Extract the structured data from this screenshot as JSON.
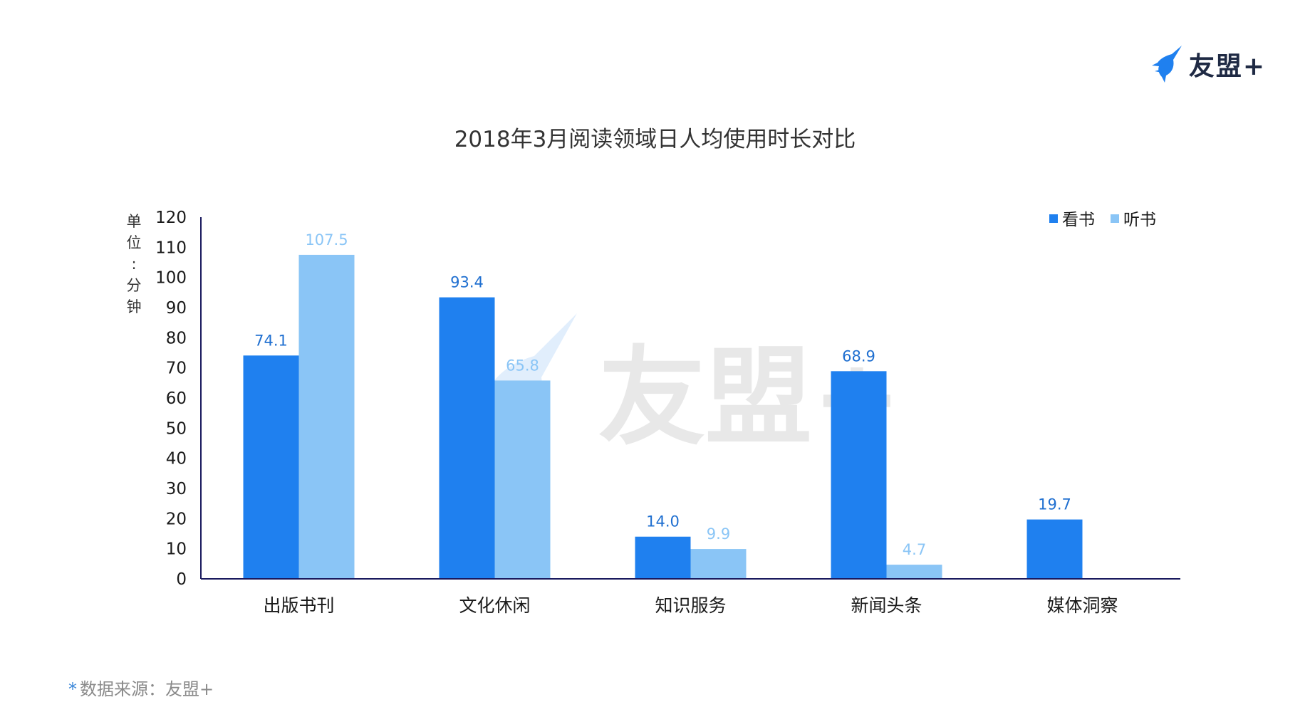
{
  "brand": {
    "logo_text": "友盟+",
    "logo_icon": "swallow-bird-icon",
    "watermark_text": "友盟+"
  },
  "colors": {
    "series1": "#1f80ef",
    "series2": "#8ac5f6",
    "axis": "#1a1a5e",
    "label1": "#1f6fd0",
    "label2": "#8ac5f6"
  },
  "source_text": "数据来源：友盟+",
  "source_marker": "*",
  "chart_data": {
    "type": "bar",
    "title": "2018年3月阅读领域日人均使用时长对比",
    "ylabel": "单位：分钟",
    "ylabel_chars": [
      "单",
      "位",
      ":",
      "分",
      "钟"
    ],
    "ylim": [
      0,
      120
    ],
    "yticks": [
      "0",
      "10",
      "20",
      "30",
      "40",
      "50",
      "60",
      "70",
      "80",
      "90",
      "100",
      "110",
      "120"
    ],
    "categories": [
      "出版书刊",
      "文化休闲",
      "知识服务",
      "新闻头条",
      "媒体洞察"
    ],
    "series": [
      {
        "name": "看书",
        "values": [
          74.1,
          93.4,
          14.0,
          68.9,
          19.7
        ],
        "labels": [
          "74.1",
          "93.4",
          "14.0",
          "68.9",
          "19.7"
        ]
      },
      {
        "name": "听书",
        "values": [
          107.5,
          65.8,
          9.9,
          4.7,
          null
        ],
        "labels": [
          "107.5",
          "65.8",
          "9.9",
          "4.7",
          ""
        ]
      }
    ],
    "legend_position": "top-right",
    "grid": false
  }
}
